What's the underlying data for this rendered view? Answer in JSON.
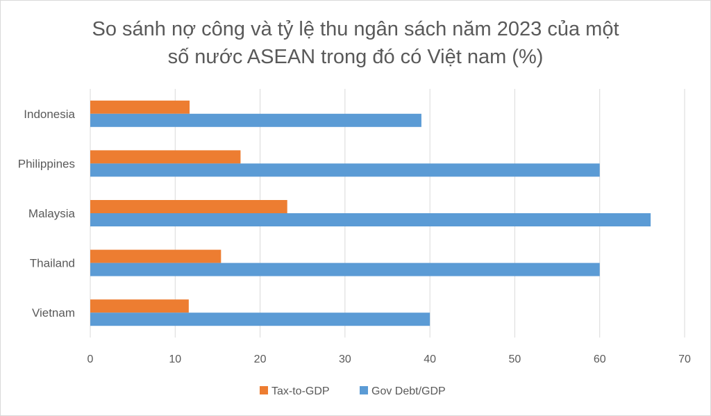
{
  "chart_data": {
    "type": "bar",
    "orientation": "horizontal",
    "title_lines": [
      "So sánh nợ  công và tỷ lệ thu ngân sách năm 2023 của một",
      "số nước ASEAN trong đó có Việt nam (%)"
    ],
    "categories": [
      "Indonesia",
      "Philippines",
      "Malaysia",
      "Thailand",
      "Vietnam"
    ],
    "series": [
      {
        "name": "Tax-to-GDP",
        "color": "#ed7d31",
        "values": [
          11.7,
          17.7,
          23.2,
          15.4,
          11.6
        ]
      },
      {
        "name": "Gov Debt/GDP",
        "color": "#5b9bd5",
        "values": [
          39,
          60,
          66,
          60,
          40
        ]
      }
    ],
    "xlim": [
      0,
      70
    ],
    "xticks": [
      0,
      10,
      20,
      30,
      40,
      50,
      60,
      70
    ],
    "grid": true,
    "legend_position": "bottom"
  }
}
